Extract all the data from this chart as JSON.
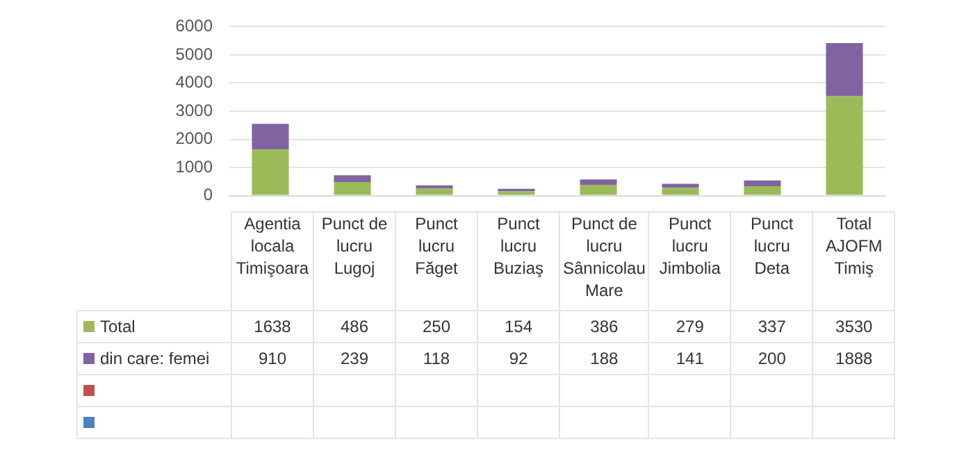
{
  "chart_data": {
    "type": "bar",
    "stacked": true,
    "categories": [
      "Agentia locala Timişoara",
      "Punct de lucru Lugoj",
      "Punct lucru Făget",
      "Punct lucru Buziaş",
      "Punct de lucru Sânnicolau Mare",
      "Punct lucru Jimbolia",
      "Punct lucru Deta",
      "Total AJOFM Timiş"
    ],
    "series": [
      {
        "name": "Total",
        "color": "#9bbb59",
        "values": [
          1638,
          486,
          250,
          154,
          386,
          279,
          337,
          3530
        ]
      },
      {
        "name": "din care: femei",
        "color": "#8064a2",
        "values": [
          910,
          239,
          118,
          92,
          188,
          141,
          200,
          1888
        ]
      },
      {
        "color": "#c0504d",
        "values": [
          null,
          null,
          null,
          null,
          null,
          null,
          null,
          null
        ]
      },
      {
        "color": "#4f81bd",
        "values": [
          null,
          null,
          null,
          null,
          null,
          null,
          null,
          null
        ]
      }
    ],
    "ylim": [
      0,
      6000
    ],
    "yticks": [
      0,
      1000,
      2000,
      3000,
      4000,
      5000,
      6000
    ],
    "grid": "y",
    "legend": "bottom",
    "data_labels": true
  }
}
